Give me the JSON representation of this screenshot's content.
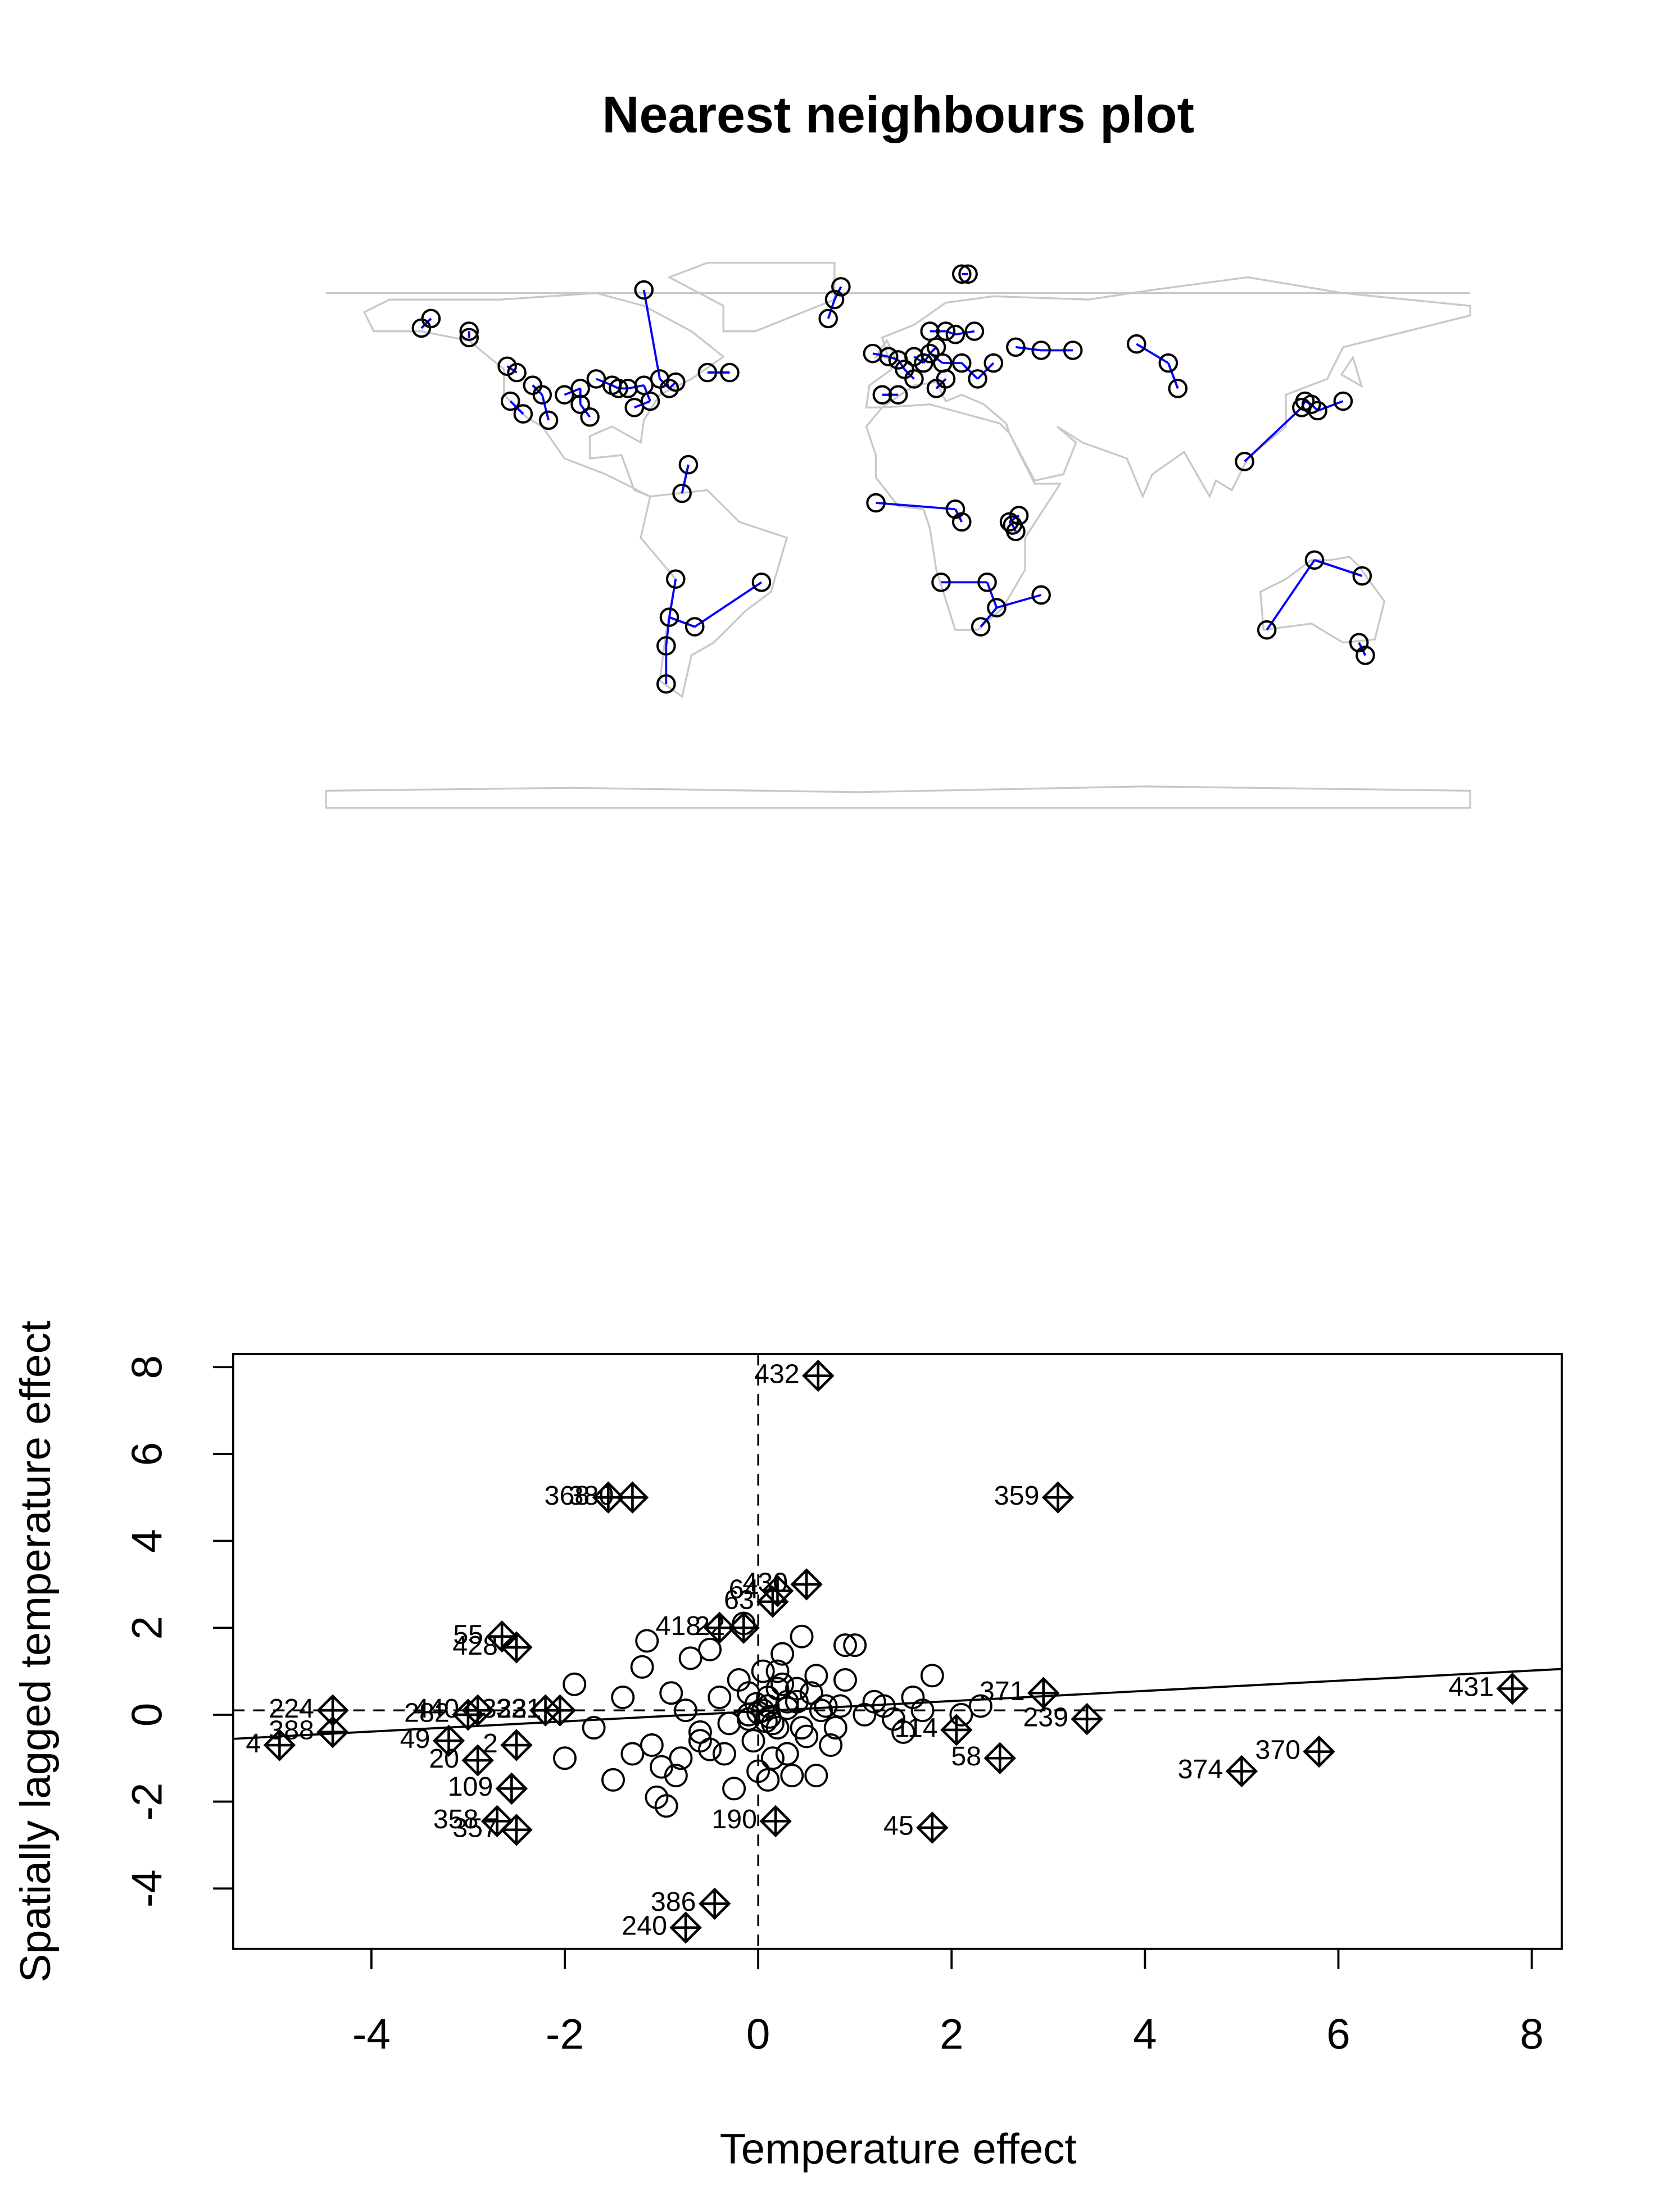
{
  "chart_data": [
    {
      "type": "map",
      "title": "Nearest neighbours plot",
      "xlim": [
        -180,
        180
      ],
      "ylim": [
        -90,
        90
      ],
      "point_color": "#000000",
      "link_color": "#0000ff",
      "points": {
        "lon": [
          -123,
          -120,
          -115,
          -122,
          -112,
          -105,
          -100,
          -95,
          -90,
          -88,
          -85,
          -80,
          -75,
          -70,
          -83,
          -78,
          -72,
          -118,
          -110,
          -150,
          -147,
          -135,
          -135,
          -60,
          -53,
          -100,
          -97,
          -66,
          -68,
          -80,
          -22,
          -20,
          -18,
          -70,
          -72,
          -64,
          -73,
          -73,
          -43,
          -8,
          -3,
          0,
          2,
          5,
          8,
          10,
          12,
          15,
          18,
          24,
          10,
          14,
          20,
          25,
          30,
          37,
          45,
          55,
          15,
          5,
          -5,
          0,
          12,
          20,
          22,
          75,
          85,
          88,
          109,
          128,
          130,
          127,
          140,
          132,
          -7,
          18,
          20,
          36,
          37,
          35,
          38,
          13.5,
          28,
          45,
          26,
          31,
          131,
          146,
          116,
          145,
          147
        ],
        "lat": [
          49,
          47,
          43,
          38,
          40,
          40,
          42,
          45,
          43,
          42,
          42,
          43,
          45,
          44,
          36,
          38,
          42,
          34,
          32,
          61,
          64,
          60,
          58,
          47,
          47,
          37,
          33,
          18,
          9,
          73,
          64,
          70,
          74,
          -18,
          -30,
          -33,
          -39,
          -51,
          -19,
          53,
          52,
          51,
          48,
          52,
          50,
          53,
          55,
          60,
          59,
          60,
          60,
          50,
          50,
          45,
          50,
          55,
          54,
          54,
          45,
          45,
          40,
          40,
          42,
          78,
          78,
          56,
          50,
          42,
          19,
          38,
          37,
          36,
          38,
          35,
          6,
          4,
          0,
          -1,
          -3,
          0,
          2,
          -19,
          -19,
          -23,
          -33,
          -27,
          -12,
          -17,
          -34,
          -38,
          -42
        ]
      }
    },
    {
      "type": "scatter",
      "xlabel": "Temperature effect",
      "ylabel": "Spatially lagged temperature effect",
      "xlim": [
        -5.43,
        8.31
      ],
      "ylim": [
        -5.39,
        8.3
      ],
      "xticks": [
        -4,
        -2,
        0,
        2,
        4,
        6,
        8
      ],
      "yticks": [
        -4,
        -2,
        0,
        2,
        4,
        6,
        8
      ],
      "fit": {
        "slope": 0.117,
        "intercept": 0.08
      },
      "vline": 0,
      "hline": 0.1,
      "points": {
        "x": [
          0.1,
          -0.1,
          0.2,
          0.05,
          -0.05,
          0.3,
          -0.2,
          0.15,
          0.25,
          -0.3,
          0.4,
          -0.4,
          0.5,
          -0.5,
          0.6,
          0.7,
          0.8,
          0.9,
          -0.6,
          -0.7,
          -0.8,
          -0.9,
          -1.0,
          -1.1,
          1.0,
          1.2,
          1.4,
          1.6,
          1.5,
          1.3,
          0.35,
          -0.25,
          0.45,
          -0.15,
          0.0,
          0.1,
          0.2,
          -0.1,
          0.3,
          0.6,
          0.9,
          -1.5,
          -1.7,
          -1.9,
          -1.4,
          -0.95,
          -1.05,
          -0.85,
          -0.6,
          0.05,
          0.15,
          0.1,
          0.25,
          -0.5,
          0.55,
          0.75,
          0.85,
          -0.75,
          1.1,
          -1.3,
          -2.0,
          -1.2,
          0.65,
          0.45,
          -0.35,
          1.8,
          2.1,
          2.3,
          1.7,
          -1.15,
          0.4,
          0.2,
          -0.1,
          0.3,
          0.0,
          0.12,
          -0.02,
          0.08
        ],
        "y": [
          0.2,
          0.5,
          -0.3,
          1.0,
          -0.6,
          0.3,
          0.8,
          -1.0,
          1.4,
          -0.2,
          0.6,
          0.4,
          -0.5,
          -0.8,
          0.9,
          0.2,
          -0.3,
          0.8,
          -0.6,
          1.3,
          -1.0,
          0.5,
          -1.2,
          -0.7,
          1.6,
          0.3,
          -0.1,
          0.4,
          -0.4,
          0.2,
          -1.4,
          -1.7,
          1.8,
          2.1,
          -1.3,
          -1.5,
          1.0,
          0.0,
          -0.9,
          -1.4,
          1.6,
          -1.5,
          -0.3,
          0.7,
          0.4,
          -2.1,
          -1.9,
          -1.4,
          -0.4,
          0.1,
          -0.2,
          0.4,
          0.7,
          1.5,
          0.5,
          -0.7,
          0.2,
          0.1,
          0.0,
          -0.9,
          -1.0,
          1.1,
          0.1,
          -0.3,
          -0.9,
          0.9,
          0.0,
          0.2,
          0.1,
          1.7,
          0.3,
          0.6,
          -0.1,
          0.15,
          0.05,
          -0.05,
          0.25,
          -0.15
        ]
      },
      "influential": {
        "labels": [
          "432",
          "368",
          "380",
          "359",
          "63",
          "64",
          "430",
          "418",
          "22",
          "55",
          "428",
          "224",
          "388",
          "4",
          "440",
          "282",
          "323",
          "321",
          "49",
          "20",
          "2",
          "109",
          "358",
          "357",
          "386",
          "240",
          "190",
          "45",
          "58",
          "114",
          "371",
          "239",
          "374",
          "370",
          "431"
        ],
        "x": [
          0.62,
          -1.55,
          -1.3,
          3.1,
          0.15,
          0.2,
          0.5,
          -0.4,
          -0.15,
          -2.65,
          -2.5,
          -4.4,
          -4.4,
          -4.95,
          -2.9,
          -3.0,
          -2.2,
          -2.05,
          -3.2,
          -2.9,
          -2.5,
          -2.55,
          -2.7,
          -2.5,
          -0.45,
          -0.75,
          0.18,
          1.8,
          2.5,
          2.05,
          2.95,
          3.4,
          5.0,
          5.8,
          7.8
        ],
        "y": [
          7.8,
          5.0,
          5.0,
          5.0,
          2.6,
          2.85,
          3.0,
          2.0,
          2.0,
          1.8,
          1.55,
          0.1,
          -0.4,
          -0.7,
          0.1,
          0.0,
          0.1,
          0.1,
          -0.6,
          -1.05,
          -0.7,
          -1.7,
          -2.45,
          -2.65,
          -4.35,
          -4.9,
          -2.45,
          -2.6,
          -1.0,
          -0.35,
          0.5,
          -0.1,
          -1.3,
          -0.85,
          0.6
        ]
      }
    }
  ]
}
